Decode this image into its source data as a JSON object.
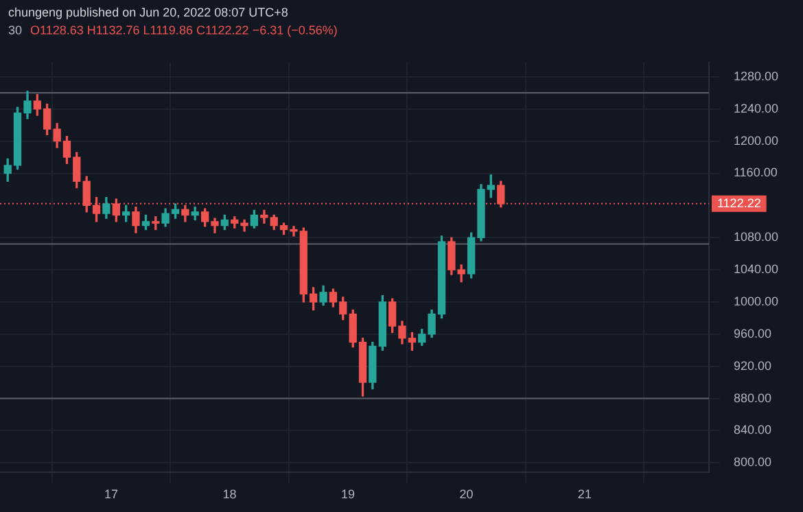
{
  "chart_data": {
    "type": "candlestick",
    "title": "chungeng published on Jun 20, 2022 08:07 UTC+8",
    "subtitle": "30",
    "annotations": [
      "O1128.63 H1132.76 L1119.86 C1122.22 −6.31 (−0.56%)"
    ],
    "x": [
      16.125,
      16.208,
      16.292,
      16.375,
      16.458,
      16.542,
      16.625,
      16.708,
      16.792,
      16.875,
      16.958,
      17.042,
      17.125,
      17.208,
      17.292,
      17.375,
      17.458,
      17.542,
      17.625,
      17.708,
      17.792,
      17.875,
      17.958,
      18.042,
      18.125,
      18.208,
      18.292,
      18.375,
      18.458,
      18.542,
      18.625,
      18.708,
      18.792,
      18.875,
      18.958,
      19.042,
      19.125,
      19.208,
      19.292,
      19.375,
      19.458,
      19.542,
      19.625,
      19.708,
      19.792,
      19.875,
      19.958,
      20.042,
      20.125,
      20.208,
      20.292
    ],
    "ohlc": [
      [
        1160,
        1178,
        1150,
        1170
      ],
      [
        1170,
        1242,
        1165,
        1235
      ],
      [
        1235,
        1262,
        1228,
        1250
      ],
      [
        1250,
        1258,
        1232,
        1240
      ],
      [
        1240,
        1246,
        1208,
        1215
      ],
      [
        1215,
        1222,
        1192,
        1200
      ],
      [
        1200,
        1206,
        1172,
        1180
      ],
      [
        1180,
        1186,
        1142,
        1150
      ],
      [
        1150,
        1156,
        1112,
        1120
      ],
      [
        1120,
        1130,
        1100,
        1110
      ],
      [
        1110,
        1130,
        1104,
        1122
      ],
      [
        1122,
        1128,
        1100,
        1108
      ],
      [
        1108,
        1120,
        1100,
        1112
      ],
      [
        1112,
        1118,
        1086,
        1095
      ],
      [
        1095,
        1108,
        1090,
        1100
      ],
      [
        1100,
        1106,
        1090,
        1098
      ],
      [
        1098,
        1116,
        1094,
        1110
      ],
      [
        1110,
        1122,
        1104,
        1115
      ],
      [
        1115,
        1120,
        1100,
        1108
      ],
      [
        1108,
        1118,
        1102,
        1112
      ],
      [
        1112,
        1116,
        1094,
        1100
      ],
      [
        1100,
        1104,
        1086,
        1095
      ],
      [
        1095,
        1108,
        1090,
        1102
      ],
      [
        1102,
        1106,
        1092,
        1098
      ],
      [
        1098,
        1102,
        1088,
        1095
      ],
      [
        1095,
        1114,
        1092,
        1108
      ],
      [
        1108,
        1114,
        1098,
        1105
      ],
      [
        1105,
        1108,
        1090,
        1095
      ],
      [
        1095,
        1098,
        1084,
        1090
      ],
      [
        1090,
        1094,
        1082,
        1088
      ],
      [
        1088,
        1092,
        1000,
        1010
      ],
      [
        1010,
        1018,
        990,
        1000
      ],
      [
        1000,
        1020,
        996,
        1012
      ],
      [
        1012,
        1016,
        994,
        1000
      ],
      [
        1000,
        1006,
        978,
        985
      ],
      [
        985,
        990,
        944,
        950
      ],
      [
        950,
        955,
        883,
        900
      ],
      [
        900,
        950,
        892,
        945
      ],
      [
        945,
        1008,
        940,
        1000
      ],
      [
        1000,
        1004,
        962,
        970
      ],
      [
        970,
        976,
        948,
        955
      ],
      [
        955,
        962,
        940,
        950
      ],
      [
        950,
        966,
        946,
        960
      ],
      [
        960,
        990,
        956,
        985
      ],
      [
        985,
        1082,
        980,
        1075
      ],
      [
        1075,
        1080,
        1034,
        1040
      ],
      [
        1040,
        1046,
        1025,
        1035
      ],
      [
        1035,
        1086,
        1030,
        1080
      ],
      [
        1080,
        1146,
        1076,
        1140
      ],
      [
        1140,
        1158,
        1130,
        1145
      ],
      [
        1145,
        1150,
        1118,
        1122.22
      ]
    ],
    "xlim": [
      16.06,
      22.05
    ],
    "xticks": [
      17,
      18,
      19,
      20,
      21
    ],
    "ylim": [
      788,
      1298
    ],
    "yticks": [
      {
        "value": 800,
        "label": "800.00"
      },
      {
        "value": 840,
        "label": "840.00"
      },
      {
        "value": 880,
        "label": "880.00"
      },
      {
        "value": 920,
        "label": "920.00"
      },
      {
        "value": 960,
        "label": "960.00"
      },
      {
        "value": 1000,
        "label": "1000.00"
      },
      {
        "value": 1040,
        "label": "1040.00"
      },
      {
        "value": 1080,
        "label": "1080.00"
      },
      {
        "value": 1160,
        "label": "1160.00"
      },
      {
        "value": 1200,
        "label": "1200.00"
      },
      {
        "value": 1240,
        "label": "1240.00"
      },
      {
        "value": 1280,
        "label": "1280.00"
      }
    ],
    "ref_lines": [
      {
        "axis": "y",
        "value": 1260,
        "color": "#5d606b"
      },
      {
        "axis": "y",
        "value": 1072,
        "color": "#5d606b"
      },
      {
        "axis": "y",
        "value": 880,
        "color": "#5d606b"
      },
      {
        "axis": "y",
        "value": 1122.22,
        "label": "1122.22",
        "color": "#ef5350",
        "line_style": "dotted"
      }
    ],
    "grid": true,
    "legend": false
  }
}
